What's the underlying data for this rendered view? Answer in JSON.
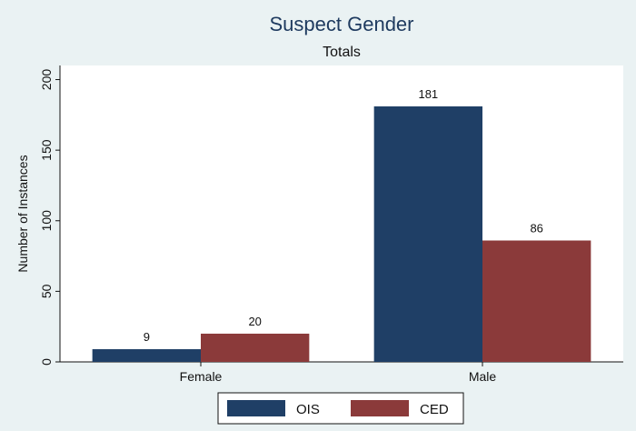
{
  "chart_data": {
    "type": "bar",
    "title": "Suspect Gender",
    "subtitle": "Totals",
    "xlabel": "",
    "ylabel": "Number of Instances",
    "categories": [
      "Female",
      "Male"
    ],
    "series": [
      {
        "name": "OIS",
        "values": [
          9,
          181
        ],
        "color": "#1f3f66"
      },
      {
        "name": "CED",
        "values": [
          20,
          86
        ],
        "color": "#8b3a3a"
      }
    ],
    "data_labels": [
      [
        "9",
        "181"
      ],
      [
        "20",
        "86"
      ]
    ],
    "ylim": [
      0,
      210
    ],
    "yticks": [
      0,
      50,
      100,
      150,
      200
    ],
    "grid": false,
    "legend_position": "bottom",
    "colors": {
      "background": "#eaf2f3",
      "plot_background": "#ffffff",
      "title": "#1e3a5f"
    }
  }
}
